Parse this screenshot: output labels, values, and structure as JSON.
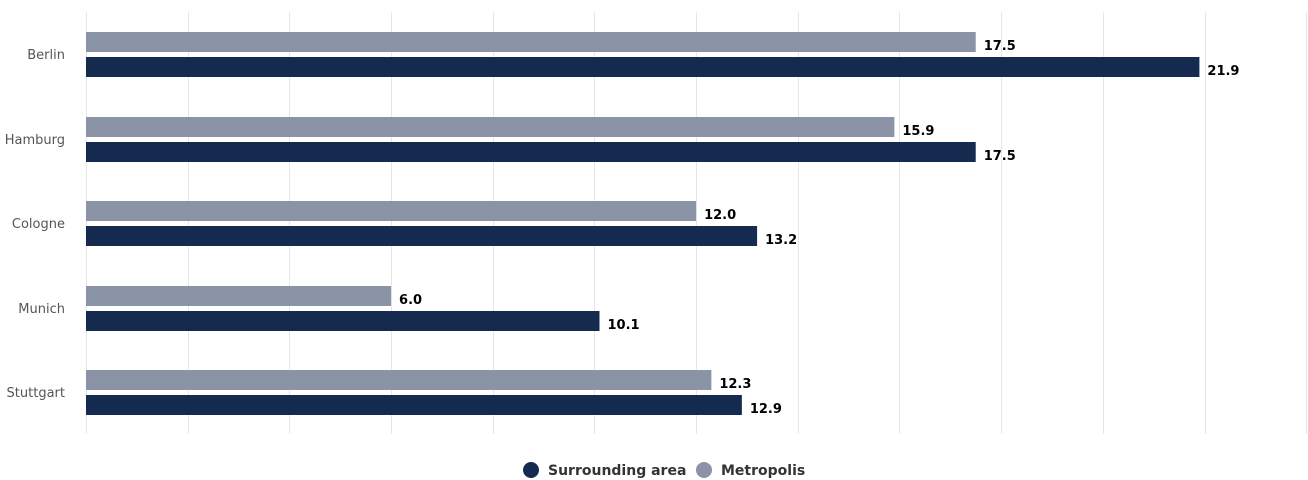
{
  "chart_data": {
    "type": "bar",
    "orientation": "horizontal",
    "categories": [
      "Berlin",
      "Hamburg",
      "Cologne",
      "Munich",
      "Stuttgart"
    ],
    "series": [
      {
        "name": "Metropolis",
        "color": "#8a94a6",
        "values": [
          17.5,
          15.9,
          12.0,
          6.0,
          12.3
        ]
      },
      {
        "name": "Surrounding area",
        "color": "#142a4f",
        "values": [
          21.9,
          17.5,
          13.2,
          10.1,
          12.9
        ]
      }
    ],
    "xlim": [
      0,
      24
    ],
    "grid": true,
    "legend_position": "bottom-center",
    "legend_order": [
      "Surrounding area",
      "Metropolis"
    ],
    "value_decimals": 1
  }
}
